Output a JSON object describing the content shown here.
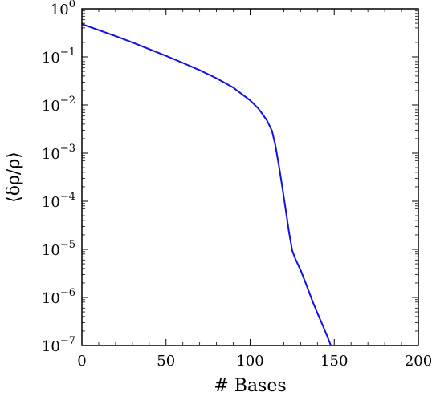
{
  "chart_data": {
    "type": "line",
    "title": "",
    "xlabel": "# Bases",
    "ylabel": "⟨δρ/ρ⟩",
    "x_scale": "linear",
    "y_scale": "log",
    "xlim": [
      0,
      200
    ],
    "ylim": [
      1e-07,
      1
    ],
    "grid": false,
    "x_ticks": [
      {
        "value": 0,
        "label": "0"
      },
      {
        "value": 50,
        "label": "50"
      },
      {
        "value": 100,
        "label": "100"
      },
      {
        "value": 150,
        "label": "150"
      },
      {
        "value": 200,
        "label": "200"
      }
    ],
    "y_ticks": [
      {
        "value": 1,
        "base": "10",
        "exp": "0"
      },
      {
        "value": 0.1,
        "base": "10",
        "exp": "−1"
      },
      {
        "value": 0.01,
        "base": "10",
        "exp": "−2"
      },
      {
        "value": 0.001,
        "base": "10",
        "exp": "−3"
      },
      {
        "value": 0.0001,
        "base": "10",
        "exp": "−4"
      },
      {
        "value": 1e-05,
        "base": "10",
        "exp": "−5"
      },
      {
        "value": 1e-06,
        "base": "10",
        "exp": "−6"
      },
      {
        "value": 1e-07,
        "base": "10",
        "exp": "−7"
      }
    ],
    "series": [
      {
        "color": "#1010e0",
        "x": [
          0,
          10,
          20,
          30,
          40,
          50,
          60,
          70,
          80,
          90,
          100,
          105,
          110,
          113,
          115,
          117,
          119,
          121,
          123,
          125,
          127,
          130,
          133,
          137,
          140,
          143,
          146,
          148
        ],
        "y": [
          0.48,
          0.36,
          0.27,
          0.2,
          0.145,
          0.105,
          0.075,
          0.053,
          0.036,
          0.023,
          0.0125,
          0.0084,
          0.0048,
          0.0029,
          0.00145,
          0.00058,
          0.00021,
          7.2e-05,
          2.4e-05,
          9.5e-06,
          6.2e-06,
          3.7e-06,
          2e-06,
          8.5e-07,
          4.7e-07,
          2.7e-07,
          1.5e-07,
          1e-07
        ]
      }
    ]
  }
}
